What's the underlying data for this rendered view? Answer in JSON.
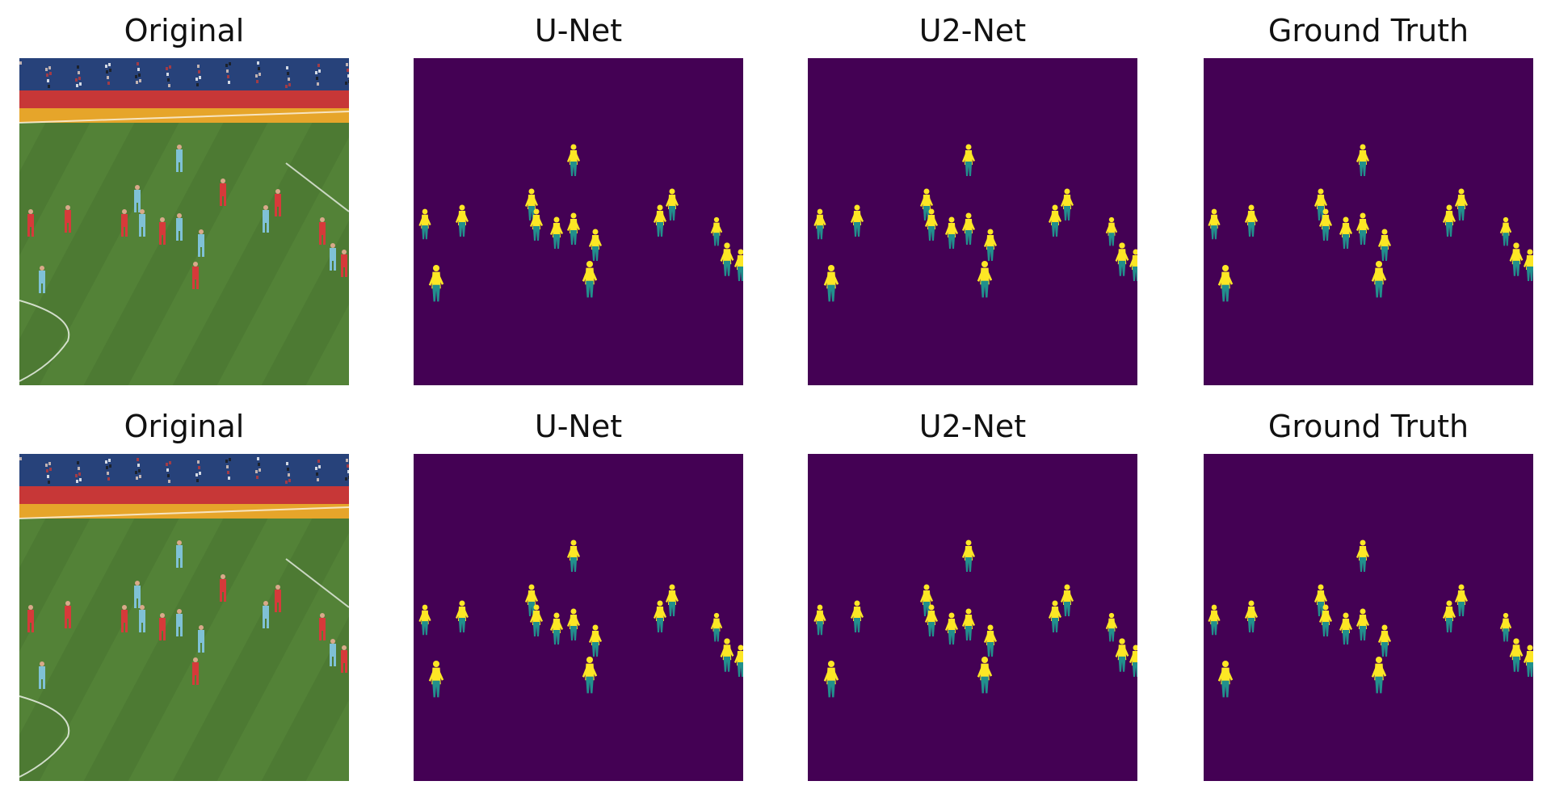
{
  "colors": {
    "mask_background": "#440154",
    "mask_yellow": "#fde725",
    "mask_teal": "#21908d",
    "grass": "#4d7a33",
    "stands": "#27427a",
    "ad_board": "#e6a52a",
    "team_red": "#d63a3a",
    "team_sky": "#7fc1d6"
  },
  "rows": [
    {
      "panels": [
        {
          "kind": "original",
          "title": "Original"
        },
        {
          "kind": "mask",
          "title": "U-Net"
        },
        {
          "kind": "mask",
          "title": "U2-Net"
        },
        {
          "kind": "mask",
          "title": "Ground Truth"
        }
      ]
    },
    {
      "panels": [
        {
          "kind": "original",
          "title": "Original"
        },
        {
          "kind": "mask",
          "title": "U-Net"
        },
        {
          "kind": "mask",
          "title": "U2-Net"
        },
        {
          "kind": "mask",
          "title": "Ground Truth"
        }
      ]
    }
  ]
}
